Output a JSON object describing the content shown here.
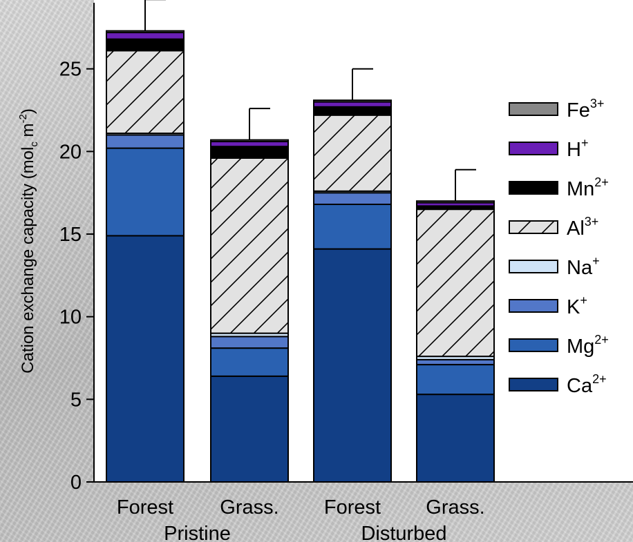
{
  "chart_data": {
    "type": "bar",
    "stacked": true,
    "categories": [
      "Forest",
      "Grass.",
      "Forest",
      "Grass."
    ],
    "groups": [
      {
        "label": "Pristine",
        "categories": [
          0,
          1
        ]
      },
      {
        "label": "Disturbed",
        "categories": [
          2,
          3
        ]
      }
    ],
    "ylabel": {
      "main": "Cation exchange capacity (mol",
      "sub": "c",
      "mid": " m",
      "sup": "-2",
      "end": ")"
    },
    "ylim": [
      0,
      29
    ],
    "yticks": [
      0,
      5,
      10,
      15,
      20,
      25
    ],
    "series": [
      {
        "name": "Ca",
        "charge": "2+",
        "values": [
          14.9,
          6.4,
          14.1,
          5.3
        ],
        "color": "#123f86"
      },
      {
        "name": "Mg",
        "charge": "2+",
        "values": [
          5.3,
          1.7,
          2.7,
          1.8
        ],
        "color": "#2a61b1"
      },
      {
        "name": "K",
        "charge": "+",
        "values": [
          0.8,
          0.7,
          0.7,
          0.3
        ],
        "color": "#5277c8"
      },
      {
        "name": "Na",
        "charge": "+",
        "values": [
          0.1,
          0.2,
          0.1,
          0.2
        ],
        "color": "#cfe3f7"
      },
      {
        "name": "Al",
        "charge": "3+",
        "values": [
          5.0,
          10.6,
          4.6,
          8.9
        ],
        "color": "#e2e2e2",
        "pattern": "hatch"
      },
      {
        "name": "Mn",
        "charge": "2+",
        "values": [
          0.7,
          0.7,
          0.5,
          0.2
        ],
        "color": "#000000"
      },
      {
        "name": "H",
        "charge": "+",
        "values": [
          0.4,
          0.3,
          0.3,
          0.2
        ],
        "color": "#6a1fb6"
      },
      {
        "name": "Fe",
        "charge": "3+",
        "values": [
          0.1,
          0.1,
          0.1,
          0.1
        ],
        "color": "#888888"
      }
    ],
    "error_bars": [
      1.9,
      1.9,
      1.9,
      1.9
    ],
    "legend_order": [
      "Fe",
      "H",
      "Mn",
      "Al",
      "Na",
      "K",
      "Mg",
      "Ca"
    ],
    "legend_position": "right"
  }
}
